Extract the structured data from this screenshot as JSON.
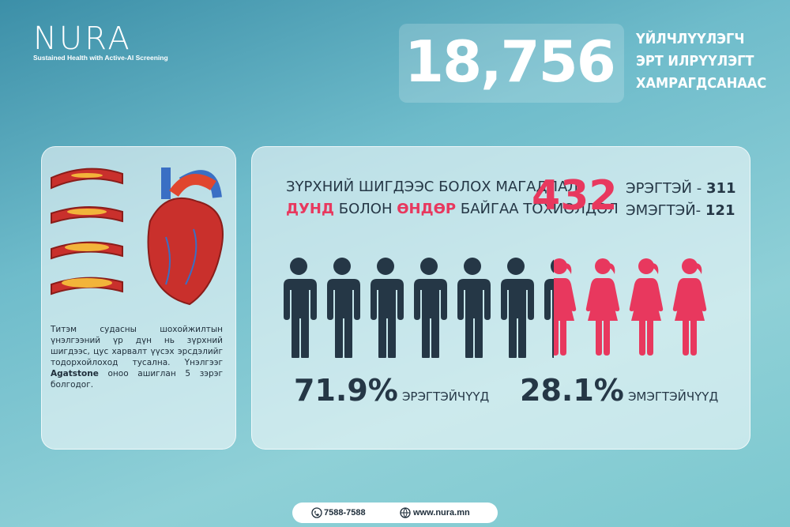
{
  "header": {
    "logo": "NURA",
    "tagline": "Sustained Health with Active-AI Screening"
  },
  "stat": {
    "number": "18,756",
    "label": [
      "ҮЙЛЧЛҮҮЛЭГЧ",
      "ЭРТ ИЛРҮҮЛЭГТ",
      "ХАМРАГДСАНААС"
    ]
  },
  "info_card": {
    "text_before": "Титэм судасны шохойжилтын үнэлгээний үр дүн нь зүрхний шигдээс, цус харвалт үүсэх эрсдэлийг тодорхойлоход тусална. Үнэлгээг ",
    "text_bold": "Agatstone",
    "text_after": " оноо ашиглан 5 зэрэг болгодог."
  },
  "risk_card": {
    "headline_line1": "ЗҮРХНИЙ ШИГДЭЭС БОЛОХ МАГАДЛАЛ",
    "headline_line2": [
      {
        "text": "ДУНД",
        "highlight": true
      },
      {
        "text": " БОЛОН ",
        "highlight": false
      },
      {
        "text": "ӨНДӨР",
        "highlight": true
      },
      {
        "text": " БАЙГАА ТОХИОЛДОЛ",
        "highlight": false
      }
    ],
    "total": "432",
    "male_label": "ЭРЭГТЭЙ - ",
    "male_count": "311",
    "female_label": "ЭМЭГТЭЙ- ",
    "female_count": "121",
    "male_percent": "71.9%",
    "male_caption": "ЭРЭГТЭЙЧҮҮД",
    "female_percent": "28.1%",
    "female_caption": "ЭМЭГТЭЙЧҮҮД"
  },
  "footer": {
    "phone": "7588-7588",
    "website": "www.nura.mn"
  }
}
